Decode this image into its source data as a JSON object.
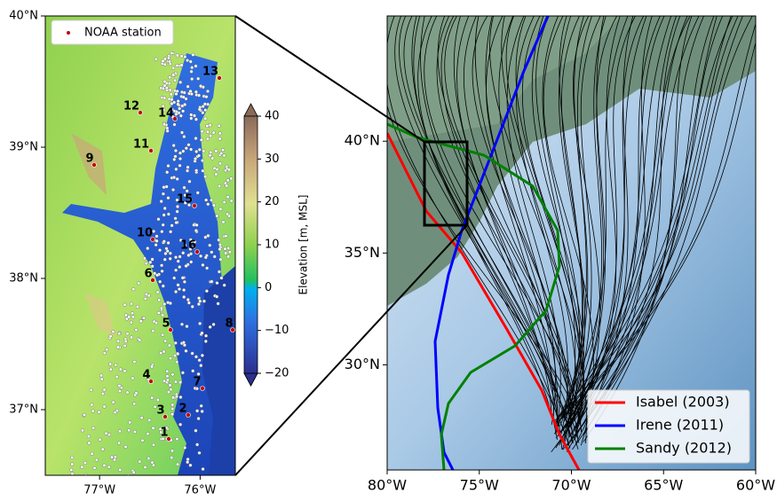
{
  "left_map": {
    "xlim": [
      -77.54,
      -75.65
    ],
    "ylim": [
      36.5,
      40
    ],
    "xticks": [
      {
        "value": -77,
        "label": "77°W"
      },
      {
        "value": -76,
        "label": "76°W"
      }
    ],
    "yticks": [
      {
        "value": 40,
        "label": "40°N"
      },
      {
        "value": 39,
        "label": "39°N"
      },
      {
        "value": 38,
        "label": "38°N"
      },
      {
        "value": 37,
        "label": "37°N"
      }
    ],
    "legend": "NOAA station",
    "stations": [
      "1",
      "2",
      "3",
      "4",
      "5",
      "6",
      "7",
      "8",
      "9",
      "10",
      "11",
      "12",
      "13",
      "14",
      "15",
      "16"
    ]
  },
  "colorbar": {
    "label": "Elevation [m, MSL]",
    "lim": [
      -20,
      40
    ],
    "ticks": [
      40,
      30,
      20,
      10,
      0,
      {
        "value": -10,
        "label": "−10"
      },
      {
        "value": -20,
        "label": "−20"
      }
    ]
  },
  "right_map": {
    "xlim": [
      -80,
      -60
    ],
    "ylim": [
      25.3,
      45.6
    ],
    "xticks": [
      {
        "value": -80,
        "label": "80°W"
      },
      {
        "value": -75,
        "label": "75°W"
      },
      {
        "value": -70,
        "label": "70°W"
      },
      {
        "value": -65,
        "label": "65°W"
      },
      {
        "value": -60,
        "label": "60°W"
      }
    ],
    "yticks": [
      {
        "value": 40,
        "label": "40°N"
      },
      {
        "value": 35,
        "label": "35°N"
      },
      {
        "value": 30,
        "label": "30°N"
      }
    ],
    "legend": [
      {
        "name": "Isabel (2003)",
        "color": "#ff0000"
      },
      {
        "name": "Irene (2011)",
        "color": "#0000ff"
      },
      {
        "name": "Sandy (2012)",
        "color": "#008000"
      }
    ]
  }
}
